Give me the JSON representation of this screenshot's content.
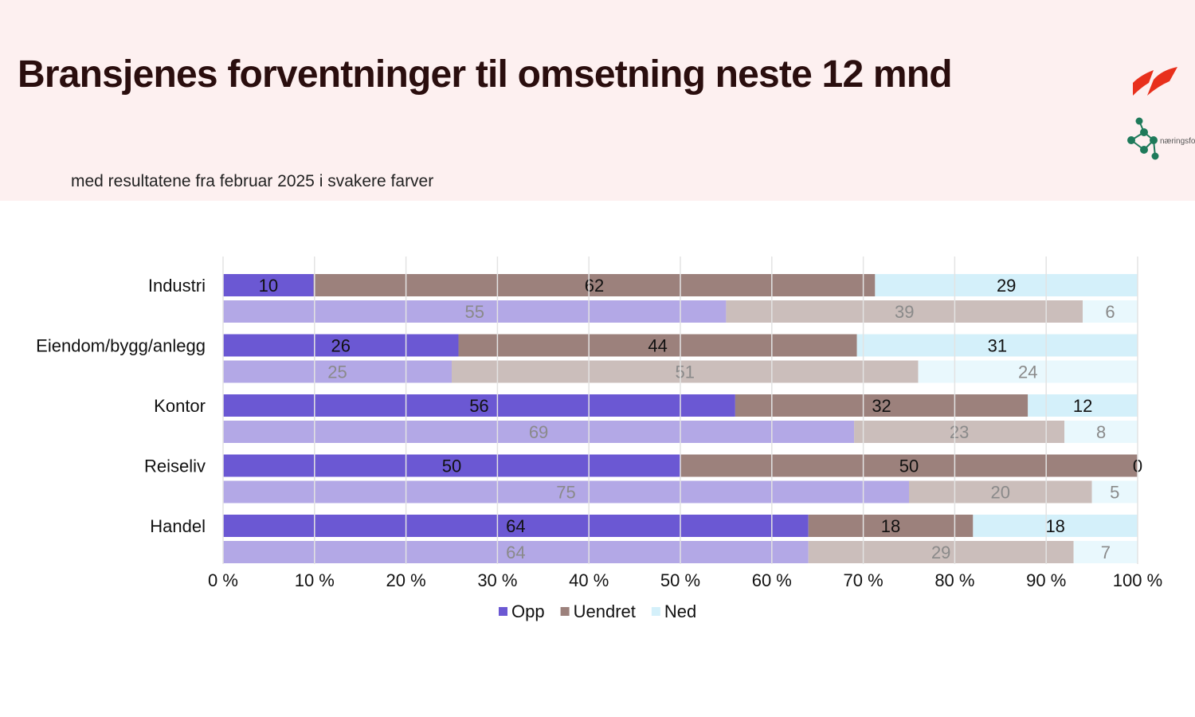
{
  "header": {
    "title": "Bransjenes forventninger til omsetning neste 12 mnd",
    "subtitle": "med resultatene fra februar 2025 i svakere farver",
    "logo_text": "næringsforeningen"
  },
  "chart_data": {
    "type": "bar",
    "orientation": "horizontal",
    "stacked": "percent",
    "categories": [
      "Industri",
      "Eiendom/bygg/anlegg",
      "Kontor",
      "Reiseliv",
      "Handel"
    ],
    "xlim": [
      0,
      100
    ],
    "x_ticks": [
      "0 %",
      "10 %",
      "20 %",
      "30 %",
      "40 %",
      "50 %",
      "60 %",
      "70 %",
      "80 %",
      "90 %",
      "100 %"
    ],
    "grid": true,
    "legend_position": "bottom",
    "series": [
      {
        "name": "Opp",
        "color": "#6b58d3",
        "current": [
          10,
          26,
          56,
          50,
          64
        ],
        "previous": [
          55,
          25,
          69,
          75,
          64
        ],
        "previous_color": "#b3a8e6"
      },
      {
        "name": "Uendret",
        "color": "#9c817c",
        "current": [
          62,
          44,
          32,
          50,
          18
        ],
        "previous": [
          39,
          51,
          23,
          20,
          29
        ],
        "previous_color": "#cbbebb"
      },
      {
        "name": "Ned",
        "color": "#d4f0fa",
        "current": [
          29,
          31,
          12,
          0,
          18
        ],
        "previous": [
          6,
          24,
          8,
          5,
          7
        ],
        "previous_color": "#e9f8fd"
      }
    ]
  }
}
